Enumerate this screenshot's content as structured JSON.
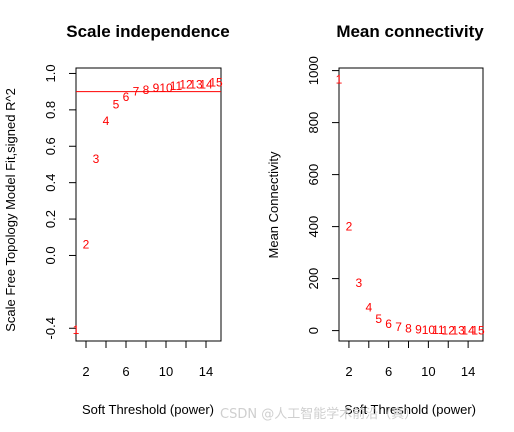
{
  "chart_data": [
    {
      "type": "scatter",
      "title": "Scale independence",
      "xlabel": "Soft Threshold (power)",
      "ylabel": "Scale Free Topology Model Fit,signed R^2",
      "xlim": [
        1,
        15.5
      ],
      "ylim": [
        -0.47,
        1.03
      ],
      "xticks": [
        2,
        4,
        6,
        8,
        10,
        12,
        14
      ],
      "xtick_labels": [
        "2",
        "6",
        "10",
        "14"
      ],
      "yticks": [
        -0.4,
        0.0,
        0.2,
        0.4,
        0.6,
        0.8,
        1.0
      ],
      "ytick_labels": [
        "-0.4",
        "0.0",
        "0.2",
        "0.4",
        "0.6",
        "0.8",
        "1.0"
      ],
      "grid": false,
      "legend": "none",
      "reference_line": {
        "y": 0.9,
        "color": "#ff0000"
      },
      "point_color": "#ff0000",
      "points": [
        {
          "x": 1,
          "y": -0.41,
          "label": "1"
        },
        {
          "x": 2,
          "y": 0.06,
          "label": "2"
        },
        {
          "x": 3,
          "y": 0.53,
          "label": "3"
        },
        {
          "x": 4,
          "y": 0.74,
          "label": "4"
        },
        {
          "x": 5,
          "y": 0.83,
          "label": "5"
        },
        {
          "x": 6,
          "y": 0.87,
          "label": "6"
        },
        {
          "x": 7,
          "y": 0.9,
          "label": "7"
        },
        {
          "x": 8,
          "y": 0.91,
          "label": "8"
        },
        {
          "x": 9,
          "y": 0.92,
          "label": "9"
        },
        {
          "x": 10,
          "y": 0.92,
          "label": "10"
        },
        {
          "x": 11,
          "y": 0.93,
          "label": "11"
        },
        {
          "x": 12,
          "y": 0.94,
          "label": "12"
        },
        {
          "x": 13,
          "y": 0.94,
          "label": "13"
        },
        {
          "x": 14,
          "y": 0.94,
          "label": "14"
        },
        {
          "x": 15,
          "y": 0.95,
          "label": "15"
        }
      ]
    },
    {
      "type": "scatter",
      "title": "Mean connectivity",
      "xlabel": "Soft Threshold (power)",
      "ylabel": "Mean Connectivity",
      "xlim": [
        1,
        15.5
      ],
      "ylim": [
        -40,
        1010
      ],
      "xticks": [
        2,
        4,
        6,
        8,
        10,
        12,
        14
      ],
      "xtick_labels": [
        "2",
        "6",
        "10",
        "14"
      ],
      "yticks": [
        0,
        200,
        400,
        600,
        800,
        1000
      ],
      "ytick_labels": [
        "0",
        "200",
        "400",
        "600",
        "800",
        "1000"
      ],
      "grid": false,
      "legend": "none",
      "point_color": "#ff0000",
      "points": [
        {
          "x": 1,
          "y": 965,
          "label": "1"
        },
        {
          "x": 2,
          "y": 400,
          "label": "2"
        },
        {
          "x": 3,
          "y": 183,
          "label": "3"
        },
        {
          "x": 4,
          "y": 88,
          "label": "4"
        },
        {
          "x": 5,
          "y": 45,
          "label": "5"
        },
        {
          "x": 6,
          "y": 25,
          "label": "6"
        },
        {
          "x": 7,
          "y": 14,
          "label": "7"
        },
        {
          "x": 8,
          "y": 8,
          "label": "8"
        },
        {
          "x": 9,
          "y": 5,
          "label": "9"
        },
        {
          "x": 10,
          "y": 3,
          "label": "10"
        },
        {
          "x": 11,
          "y": 2,
          "label": "11"
        },
        {
          "x": 12,
          "y": 1,
          "label": "12"
        },
        {
          "x": 13,
          "y": 1,
          "label": "13"
        },
        {
          "x": 14,
          "y": 1,
          "label": "14"
        },
        {
          "x": 15,
          "y": 1,
          "label": "15"
        }
      ]
    }
  ],
  "watermark": "CSDN @人工智能学术前沿（真）"
}
